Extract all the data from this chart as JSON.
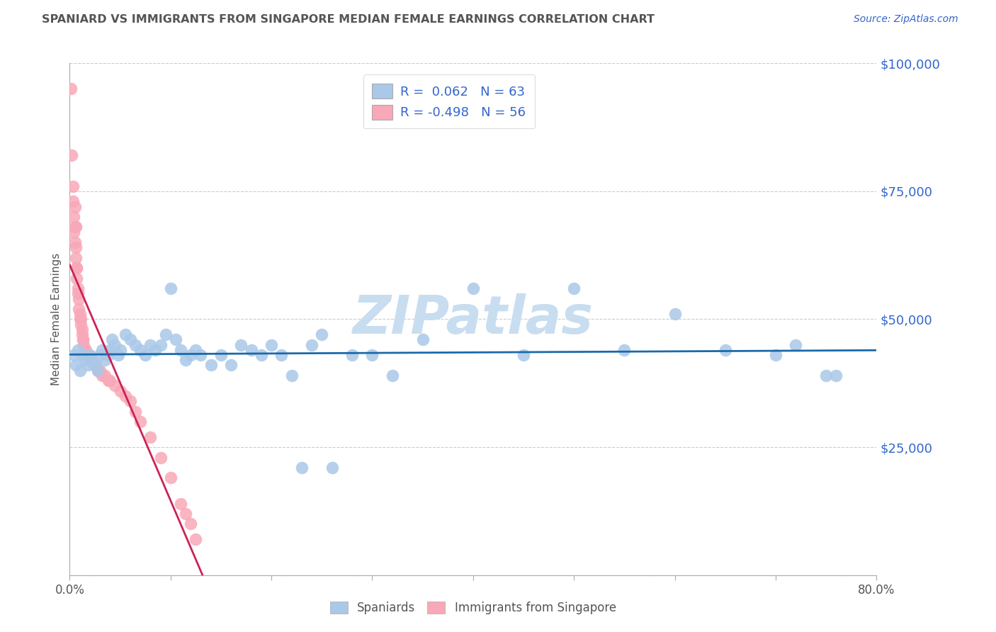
{
  "title": "SPANIARD VS IMMIGRANTS FROM SINGAPORE MEDIAN FEMALE EARNINGS CORRELATION CHART",
  "source": "Source: ZipAtlas.com",
  "xlabel_spaniards": "Spaniards",
  "xlabel_immigrants": "Immigrants from Singapore",
  "ylabel": "Median Female Earnings",
  "legend_r1_label": "R =  0.062   N = 63",
  "legend_r2_label": "R = -0.498   N = 56",
  "blue_color": "#aac8e8",
  "pink_color": "#f8a8b8",
  "trend_blue": "#1a6aaa",
  "trend_pink": "#cc2255",
  "axis_text_color": "#3366cc",
  "title_color": "#555555",
  "source_color": "#3366cc",
  "watermark_color": "#c8ddf0",
  "xmin": 0.0,
  "xmax": 0.8,
  "ymin": 0,
  "ymax": 100000,
  "yticks": [
    0,
    25000,
    50000,
    75000,
    100000
  ],
  "ytick_labels": [
    "",
    "$25,000",
    "$50,000",
    "$75,000",
    "$100,000"
  ],
  "xticks": [
    0.0,
    0.1,
    0.2,
    0.3,
    0.4,
    0.5,
    0.6,
    0.7,
    0.8
  ],
  "xtick_labels": [
    "0.0%",
    "",
    "",
    "",
    "",
    "",
    "",
    "",
    "80.0%"
  ],
  "blue_x": [
    0.004,
    0.006,
    0.008,
    0.01,
    0.012,
    0.015,
    0.018,
    0.02,
    0.022,
    0.025,
    0.028,
    0.03,
    0.032,
    0.035,
    0.038,
    0.04,
    0.042,
    0.045,
    0.048,
    0.05,
    0.055,
    0.06,
    0.065,
    0.07,
    0.075,
    0.08,
    0.085,
    0.09,
    0.095,
    0.1,
    0.105,
    0.11,
    0.115,
    0.12,
    0.125,
    0.13,
    0.14,
    0.15,
    0.16,
    0.17,
    0.18,
    0.19,
    0.2,
    0.21,
    0.22,
    0.23,
    0.24,
    0.25,
    0.26,
    0.28,
    0.3,
    0.32,
    0.35,
    0.4,
    0.45,
    0.5,
    0.55,
    0.6,
    0.65,
    0.7,
    0.72,
    0.75,
    0.76
  ],
  "blue_y": [
    43000,
    41000,
    44000,
    40000,
    43000,
    42000,
    41000,
    43000,
    42000,
    41000,
    40000,
    43000,
    44000,
    42000,
    43000,
    44000,
    46000,
    45000,
    43000,
    44000,
    47000,
    46000,
    45000,
    44000,
    43000,
    45000,
    44000,
    45000,
    47000,
    56000,
    46000,
    44000,
    42000,
    43000,
    44000,
    43000,
    41000,
    43000,
    41000,
    45000,
    44000,
    43000,
    45000,
    43000,
    39000,
    21000,
    45000,
    47000,
    21000,
    43000,
    43000,
    39000,
    46000,
    56000,
    43000,
    56000,
    44000,
    51000,
    44000,
    43000,
    45000,
    39000,
    39000
  ],
  "pink_x": [
    0.001,
    0.002,
    0.003,
    0.003,
    0.004,
    0.004,
    0.005,
    0.005,
    0.006,
    0.006,
    0.007,
    0.007,
    0.008,
    0.008,
    0.009,
    0.009,
    0.01,
    0.01,
    0.011,
    0.011,
    0.012,
    0.012,
    0.013,
    0.013,
    0.014,
    0.015,
    0.016,
    0.017,
    0.018,
    0.019,
    0.02,
    0.022,
    0.024,
    0.026,
    0.028,
    0.03,
    0.032,
    0.035,
    0.038,
    0.04,
    0.045,
    0.05,
    0.055,
    0.06,
    0.065,
    0.07,
    0.08,
    0.09,
    0.1,
    0.11,
    0.115,
    0.12,
    0.125,
    0.005,
    0.006,
    0.007
  ],
  "pink_y": [
    95000,
    82000,
    76000,
    73000,
    70000,
    67000,
    68000,
    65000,
    64000,
    62000,
    60000,
    58000,
    56000,
    55000,
    54000,
    52000,
    51000,
    50000,
    50000,
    49000,
    48000,
    47000,
    46000,
    46000,
    45000,
    44000,
    44000,
    43000,
    43000,
    43000,
    42000,
    42000,
    41000,
    41000,
    40000,
    40000,
    39000,
    39000,
    38000,
    38000,
    37000,
    36000,
    35000,
    34000,
    32000,
    30000,
    27000,
    23000,
    19000,
    14000,
    12000,
    10000,
    7000,
    72000,
    68000,
    60000
  ],
  "pink_trend_xmax": 0.135
}
